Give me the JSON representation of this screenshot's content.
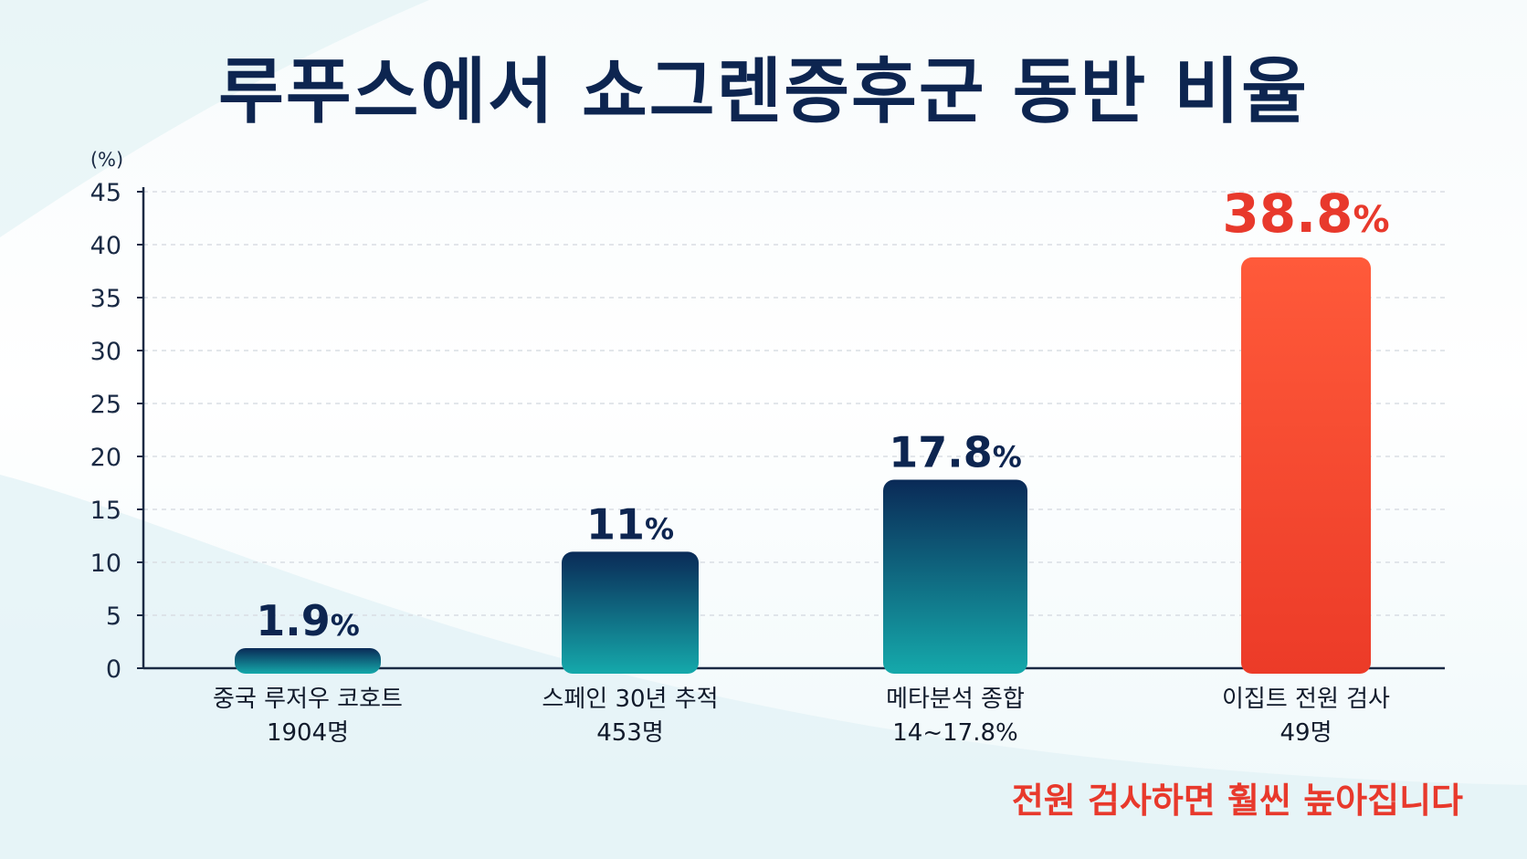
{
  "title": "루푸스에서 쇼그렌증후군 동반 비율",
  "footnote": "전원 검사하면 훨씬 높아집니다",
  "colors": {
    "title": "#0d2550",
    "bar_top": "#0a2a57",
    "bar_bottom": "#15a9ab",
    "highlight_top": "#ff5a3a",
    "highlight_bottom": "#ec3b28",
    "highlight_text": "#e8392c",
    "axis": "#1a2a44",
    "grid": "#d9dde3"
  },
  "chart_data": {
    "type": "bar",
    "unit_label": "(%)",
    "ylim": [
      0,
      45
    ],
    "yticks": [
      0,
      5,
      10,
      15,
      20,
      25,
      30,
      35,
      40,
      45
    ],
    "grid": true,
    "categories": [
      [
        "중국 루저우 코호트",
        "1904명"
      ],
      [
        "스페인 30년 추적",
        "453명"
      ],
      [
        "메타분석 종합",
        "14~17.8%"
      ],
      [
        "이집트 전원 검사",
        "49명"
      ]
    ],
    "values": [
      1.9,
      11,
      17.8,
      38.8
    ],
    "value_labels": [
      "1.9",
      "11",
      "17.8",
      "38.8"
    ],
    "value_suffix": "%",
    "highlight_index": 3
  }
}
